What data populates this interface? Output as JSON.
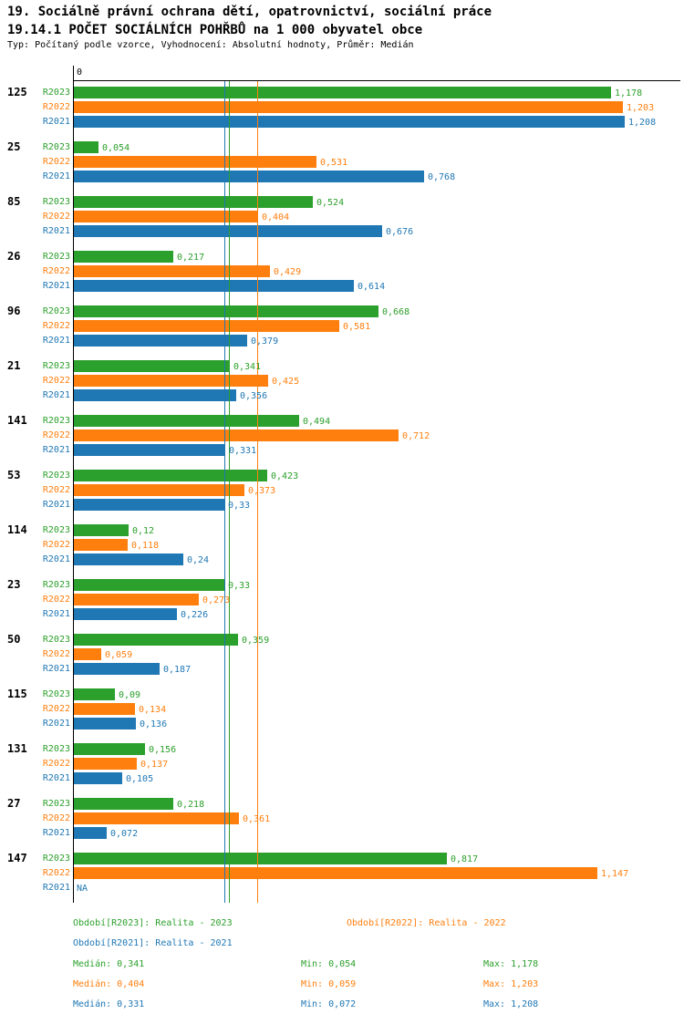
{
  "title": {
    "line1": "19. Sociálně právní ochrana dětí, opatrovnictví, sociální práce",
    "line2": "19.14.1 POČET SOCIÁLNÍCH POHŘBŮ na 1 000 obyvatel obce",
    "subtitle": "Typ: Počítaný podle vzorce, Vyhodnocení: Absolutní hodnoty, Průměr: Medián"
  },
  "chart_data": {
    "type": "bar",
    "orientation": "horizontal",
    "x_axis": {
      "zero_label": "0",
      "xmax": 1.25,
      "grid": false
    },
    "series": [
      {
        "name": "R2023",
        "color": "#2CA02C",
        "legend": "Období[R2023]: Realita - 2023"
      },
      {
        "name": "R2022",
        "color": "#FF7F0E",
        "legend": "Období[R2022]: Realita - 2022"
      },
      {
        "name": "R2021",
        "color": "#1F77B4",
        "legend": "Období[R2021]: Realita - 2021"
      }
    ],
    "groups": [
      {
        "label": "125",
        "values": [
          1.178,
          1.203,
          1.208
        ],
        "display": [
          "1,178",
          "1,203",
          "1,208"
        ]
      },
      {
        "label": "25",
        "values": [
          0.054,
          0.531,
          0.768
        ],
        "display": [
          "0,054",
          "0,531",
          "0,768"
        ]
      },
      {
        "label": "85",
        "values": [
          0.524,
          0.404,
          0.676
        ],
        "display": [
          "0,524",
          "0,404",
          "0,676"
        ]
      },
      {
        "label": "26",
        "values": [
          0.217,
          0.429,
          0.614
        ],
        "display": [
          "0,217",
          "0,429",
          "0,614"
        ]
      },
      {
        "label": "96",
        "values": [
          0.668,
          0.581,
          0.379
        ],
        "display": [
          "0,668",
          "0,581",
          "0,379"
        ]
      },
      {
        "label": "21",
        "values": [
          0.341,
          0.425,
          0.356
        ],
        "display": [
          "0,341",
          "0,425",
          "0,356"
        ]
      },
      {
        "label": "141",
        "values": [
          0.494,
          0.712,
          0.331
        ],
        "display": [
          "0,494",
          "0,712",
          "0,331"
        ]
      },
      {
        "label": "53",
        "values": [
          0.423,
          0.373,
          0.33
        ],
        "display": [
          "0,423",
          "0,373",
          "0,33"
        ]
      },
      {
        "label": "114",
        "values": [
          0.12,
          0.118,
          0.24
        ],
        "display": [
          "0,12",
          "0,118",
          "0,24"
        ]
      },
      {
        "label": "23",
        "values": [
          0.33,
          0.273,
          0.226
        ],
        "display": [
          "0,33",
          "0,273",
          "0,226"
        ]
      },
      {
        "label": "50",
        "values": [
          0.359,
          0.059,
          0.187
        ],
        "display": [
          "0,359",
          "0,059",
          "0,187"
        ]
      },
      {
        "label": "115",
        "values": [
          0.09,
          0.134,
          0.136
        ],
        "display": [
          "0,09",
          "0,134",
          "0,136"
        ]
      },
      {
        "label": "131",
        "values": [
          0.156,
          0.137,
          0.105
        ],
        "display": [
          "0,156",
          "0,137",
          "0,105"
        ]
      },
      {
        "label": "27",
        "values": [
          0.218,
          0.361,
          0.072
        ],
        "display": [
          "0,218",
          "0,361",
          "0,072"
        ]
      },
      {
        "label": "147",
        "values": [
          0.817,
          1.147,
          null
        ],
        "display": [
          "0,817",
          "1,147",
          "NA"
        ]
      }
    ],
    "median_lines": [
      {
        "series": "R2023",
        "value": 0.341,
        "color": "#2CA02C"
      },
      {
        "series": "R2022",
        "value": 0.404,
        "color": "#FF7F0E"
      },
      {
        "series": "R2021",
        "value": 0.331,
        "color": "#1F77B4"
      }
    ]
  },
  "legend": {
    "items": [
      {
        "label": "Období[R2023]: Realita - 2023",
        "color": "#2CA02C"
      },
      {
        "label": "Období[R2022]: Realita - 2022",
        "color": "#FF7F0E"
      },
      {
        "label": "Období[R2021]: Realita - 2021",
        "color": "#1F77B4"
      }
    ]
  },
  "stats": {
    "rows": [
      {
        "median": "Medián: 0,341",
        "min": "Min: 0,054",
        "max": "Max: 1,178",
        "color": "#2CA02C"
      },
      {
        "median": "Medián: 0,404",
        "min": "Min: 0,059",
        "max": "Max: 1,203",
        "color": "#FF7F0E"
      },
      {
        "median": "Medián: 0,331",
        "min": "Min: 0,072",
        "max": "Max: 1,208",
        "color": "#1F77B4"
      }
    ]
  }
}
